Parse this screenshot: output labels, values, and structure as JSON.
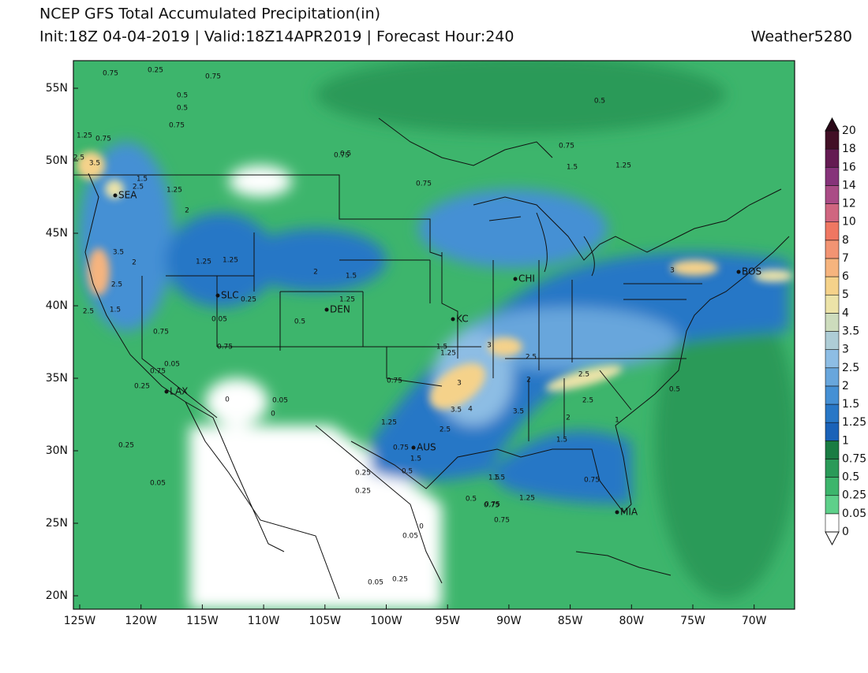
{
  "header": {
    "title": "NCEP GFS Total Accumulated Precipitation(in)",
    "subtitle": "Init:18Z 04-04-2019 | Valid:18Z14APR2019 | Forecast Hour:240",
    "brand": "Weather5280"
  },
  "map": {
    "lon_ticks": [
      "125W",
      "120W",
      "115W",
      "110W",
      "105W",
      "100W",
      "95W",
      "90W",
      "85W",
      "80W",
      "75W",
      "70W"
    ],
    "lat_ticks": [
      "20N",
      "25N",
      "30N",
      "35N",
      "40N",
      "45N",
      "50N",
      "55N"
    ],
    "cities": [
      "SEA",
      "SLC",
      "DEN",
      "LAX",
      "KC",
      "CHI",
      "AUS",
      "BOS",
      "MIA"
    ],
    "contour_labels": [
      0.75,
      0.25,
      0.75,
      0.5,
      0.75,
      0.5,
      1.25,
      0.75,
      2.5,
      3.5,
      1.5,
      2.5,
      1.25,
      3.5,
      2,
      2.5,
      1.5,
      0.75,
      0.05,
      0.75,
      0.25,
      0.05,
      0.25,
      0.5,
      1.25,
      1.5,
      2,
      0.75,
      1.25,
      1.25,
      2,
      2.5,
      3,
      3.5,
      4,
      3,
      2.5,
      3.5,
      2.5,
      2,
      1.5,
      0.05,
      0.25,
      0,
      0,
      0.05,
      0.25,
      0.75,
      1.5,
      1.25,
      0.75,
      1.5,
      0.5,
      0.75,
      1.25,
      0.75,
      0.5,
      1.25,
      1.5,
      2.5,
      3,
      2.5,
      2,
      1.5,
      0.75,
      0.75,
      1,
      0.75,
      0.5,
      0.25,
      0.5,
      0.75,
      1.25,
      0.75,
      1.5,
      0.5,
      0.05,
      0,
      0.05,
      0.25
    ]
  },
  "colorbar": {
    "levels": [
      0,
      0.05,
      0.25,
      0.5,
      0.75,
      1,
      1.25,
      1.5,
      2,
      2.5,
      3,
      3.5,
      4,
      5,
      6,
      7,
      8,
      10,
      12,
      14,
      16,
      18,
      20
    ],
    "colors": [
      "#ffffff",
      "#5ed08a",
      "#3db56c",
      "#2a9a58",
      "#1a7c43",
      "#1a62b8",
      "#2877c6",
      "#4590d4",
      "#68a6dc",
      "#8dbde4",
      "#aecdd6",
      "#cddcbd",
      "#ece3a8",
      "#f5d28a",
      "#f6b47e",
      "#f29473",
      "#ef7762",
      "#d06680",
      "#aa4c86",
      "#86337a",
      "#641b52",
      "#421026"
    ],
    "over_color": "#2a0818",
    "under_color": "#ffffff"
  }
}
